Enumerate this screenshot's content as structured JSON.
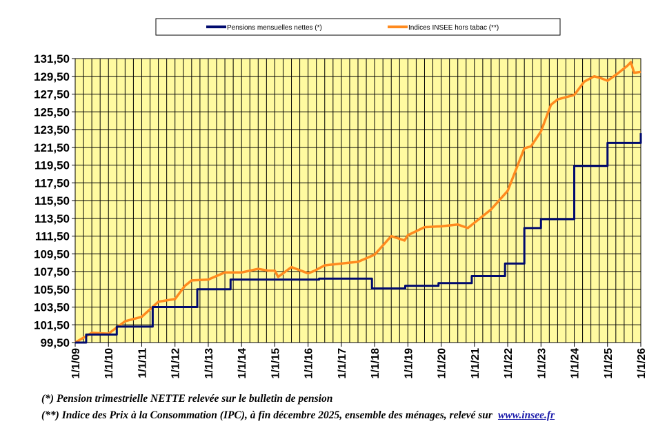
{
  "colors": {
    "plot_bg": "#fffaa0",
    "pension": "#000a6e",
    "insee": "#ff8a1e",
    "grid": "#000000"
  },
  "chart_data": {
    "type": "line",
    "grid": true,
    "legend_position": "top",
    "ylim": [
      99.5,
      131.5
    ],
    "y_ticks": [
      "99,50",
      "101,50",
      "103,50",
      "105,50",
      "107,50",
      "109,50",
      "111,50",
      "113,50",
      "115,50",
      "117,50",
      "119,50",
      "121,50",
      "123,50",
      "125,50",
      "127,50",
      "129,50",
      "131,50"
    ],
    "xlim": [
      2009,
      2026
    ],
    "x_ticks": [
      "1/1/09",
      "1/1/10",
      "1/1/11",
      "1/1/12",
      "1/1/13",
      "1/1/14",
      "1/1/15",
      "1/1/16",
      "1/1/17",
      "1/1/18",
      "1/1/19",
      "1/1/20",
      "1/1/21",
      "1/1/22",
      "1/1/23",
      "1/1/24",
      "1/1/25",
      "1/1/26"
    ],
    "series": [
      {
        "name": "Pensions mensuelles nettes (*)",
        "step": true,
        "x": [
          2009.0,
          2009.33,
          2010.25,
          2011.33,
          2012.33,
          2012.67,
          2013.33,
          2013.67,
          2014.33,
          2015.33,
          2016.33,
          2017.33,
          2017.75,
          2017.92,
          2018.92,
          2019.92,
          2020.92,
          2021.92,
          2022.5,
          2023.0,
          2024.0,
          2025.0,
          2026.0
        ],
        "values": [
          99.5,
          100.4,
          101.3,
          103.5,
          103.5,
          105.5,
          105.5,
          106.6,
          106.6,
          106.6,
          106.7,
          106.7,
          106.7,
          105.6,
          105.9,
          106.2,
          107.0,
          108.4,
          112.4,
          113.4,
          119.4,
          122.0,
          123.1
        ]
      },
      {
        "name": "Indices INSEE hors tabac (**)",
        "step": false,
        "x": [
          2009.0,
          2009.5,
          2010.0,
          2010.5,
          2011.0,
          2011.5,
          2012.0,
          2012.3,
          2012.5,
          2013.0,
          2013.5,
          2014.0,
          2014.5,
          2014.8,
          2015.0,
          2015.1,
          2015.5,
          2016.0,
          2016.2,
          2016.5,
          2017.0,
          2017.5,
          2018.0,
          2018.5,
          2018.9,
          2019.0,
          2019.5,
          2020.0,
          2020.5,
          2020.8,
          2021.0,
          2021.5,
          2022.0,
          2022.5,
          2022.7,
          2023.0,
          2023.3,
          2023.5,
          2024.0,
          2024.3,
          2024.6,
          2024.8,
          2025.0,
          2025.3,
          2025.6,
          2025.7,
          2025.8,
          2026.0
        ],
        "values": [
          99.5,
          100.6,
          100.5,
          101.9,
          102.4,
          104.1,
          104.4,
          105.9,
          106.5,
          106.6,
          107.4,
          107.4,
          107.8,
          107.6,
          107.6,
          106.9,
          108.0,
          107.3,
          107.6,
          108.2,
          108.4,
          108.6,
          109.4,
          111.5,
          111.0,
          111.6,
          112.5,
          112.6,
          112.8,
          112.4,
          113.0,
          114.5,
          116.6,
          121.4,
          121.6,
          123.3,
          126.3,
          126.9,
          127.4,
          128.9,
          129.5,
          129.3,
          129.0,
          129.8,
          130.7,
          131.1,
          129.9,
          130.0
        ]
      }
    ]
  },
  "notes": {
    "note1": "(*) Pension trimestrielle NETTE relevée sur le bulletin de pension",
    "note2": "(**) Indice des Prix à la Consommation (IPC), à fin décembre 2025, ensemble des ménages, relevé sur",
    "link": "www.insee.fr"
  }
}
